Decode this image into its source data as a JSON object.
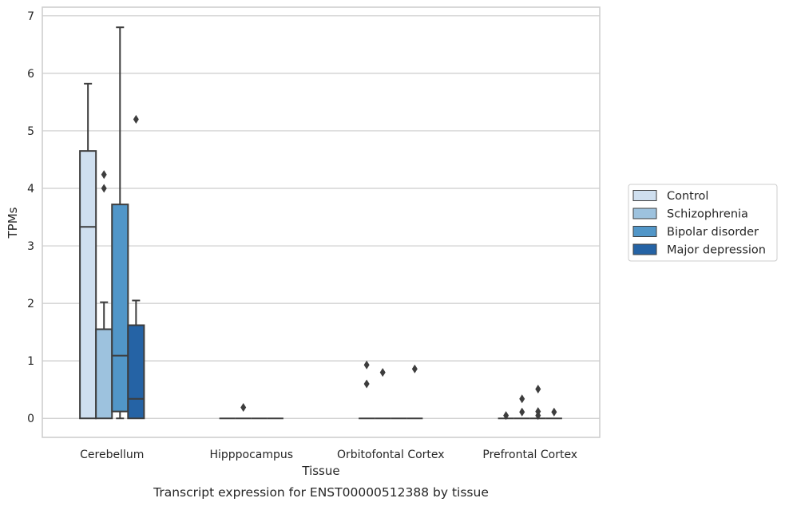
{
  "chart_data": {
    "type": "box",
    "title": "",
    "caption": "Transcript expression for ENST00000512388 by tissue",
    "xlabel": "Tissue",
    "ylabel": "TPMs",
    "ylim": [
      -0.33,
      7.15
    ],
    "yticks": [
      "0",
      "1",
      "2",
      "3",
      "4",
      "5",
      "6",
      "7"
    ],
    "grid": "horizontal",
    "legend_position": "right",
    "categories": [
      "Cerebellum",
      "Hipppocampus",
      "Orbitofontal Cortex",
      "Prefrontal Cortex"
    ],
    "series": [
      {
        "name": "Control",
        "color": "#cfdfef",
        "boxes": [
          {
            "whislo": 0,
            "q1": 0,
            "med": 3.33,
            "q3": 4.65,
            "whishi": 5.82,
            "fliers": []
          },
          {
            "whislo": 0,
            "q1": 0,
            "med": 0,
            "q3": 0,
            "whishi": 0,
            "fliers": []
          },
          {
            "whislo": 0,
            "q1": 0,
            "med": 0,
            "q3": 0,
            "whishi": 0,
            "fliers": [
              0.6,
              0.93
            ]
          },
          {
            "whislo": 0,
            "q1": 0,
            "med": 0,
            "q3": 0,
            "whishi": 0,
            "fliers": [
              0.05
            ]
          }
        ]
      },
      {
        "name": "Schizophrenia",
        "color": "#9dc2de",
        "boxes": [
          {
            "whislo": 0,
            "q1": 0,
            "med": 1.55,
            "q3": 1.55,
            "whishi": 2.02,
            "fliers": [
              4.0,
              4.24
            ]
          },
          {
            "whislo": 0,
            "q1": 0,
            "med": 0,
            "q3": 0,
            "whishi": 0,
            "fliers": [
              0.19
            ]
          },
          {
            "whislo": 0,
            "q1": 0,
            "med": 0,
            "q3": 0,
            "whishi": 0,
            "fliers": [
              0.8
            ]
          },
          {
            "whislo": 0,
            "q1": 0,
            "med": 0,
            "q3": 0,
            "whishi": 0,
            "fliers": [
              0.11,
              0.34
            ]
          }
        ]
      },
      {
        "name": "Bipolar disorder",
        "color": "#5196c8",
        "boxes": [
          {
            "whislo": 0,
            "q1": 0.12,
            "med": 1.09,
            "q3": 3.72,
            "whishi": 6.8,
            "fliers": []
          },
          {
            "whislo": 0,
            "q1": 0,
            "med": 0,
            "q3": 0,
            "whishi": 0,
            "fliers": []
          },
          {
            "whislo": 0,
            "q1": 0,
            "med": 0,
            "q3": 0,
            "whishi": 0,
            "fliers": []
          },
          {
            "whislo": 0,
            "q1": 0,
            "med": 0,
            "q3": 0,
            "whishi": 0,
            "fliers": [
              0.05,
              0.12,
              0.51
            ]
          }
        ]
      },
      {
        "name": "Major depression",
        "color": "#2563a5",
        "boxes": [
          {
            "whislo": 0,
            "q1": 0,
            "med": 0.34,
            "q3": 1.62,
            "whishi": 2.05,
            "fliers": [
              5.2
            ]
          },
          {
            "whislo": 0,
            "q1": 0,
            "med": 0,
            "q3": 0,
            "whishi": 0,
            "fliers": []
          },
          {
            "whislo": 0,
            "q1": 0,
            "med": 0,
            "q3": 0,
            "whishi": 0,
            "fliers": [
              0.86
            ]
          },
          {
            "whislo": 0,
            "q1": 0,
            "med": 0,
            "q3": 0,
            "whishi": 0,
            "fliers": [
              0.11
            ]
          }
        ]
      }
    ]
  }
}
